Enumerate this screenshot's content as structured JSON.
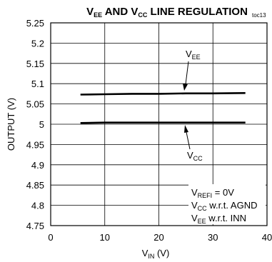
{
  "chart_data": {
    "type": "line",
    "title": {
      "p1": "V",
      "s1": "EE",
      "p2": " AND V",
      "s2": "CC",
      "p3": " LINE REGULATION"
    },
    "tag": "toc13",
    "xlabel": {
      "main": "V",
      "sub": "IN",
      "unit": " (V)"
    },
    "ylabel": "OUTPUT (V)",
    "xlim": [
      0,
      40
    ],
    "ylim": [
      4.75,
      5.25
    ],
    "xticks": [
      0,
      10,
      20,
      30,
      40
    ],
    "xtick_labels": [
      "0",
      "10",
      "20",
      "30",
      "40"
    ],
    "yticks": [
      4.75,
      4.8,
      4.85,
      4.9,
      4.95,
      5,
      5.05,
      5.1,
      5.15,
      5.2,
      5.25
    ],
    "ytick_labels": [
      "4.75",
      "4.8",
      "4.85",
      "4.9",
      "4.95",
      "5",
      "5.05",
      "5.1",
      "5.15",
      "5.2",
      "5.25"
    ],
    "grid": true,
    "series": [
      {
        "name": "VEE",
        "label": {
          "main": "V",
          "sub": "EE"
        },
        "x": [
          5.5,
          10,
          15,
          20,
          25,
          30,
          36
        ],
        "y": [
          5.073,
          5.074,
          5.075,
          5.075,
          5.076,
          5.076,
          5.077
        ]
      },
      {
        "name": "VCC",
        "label": {
          "main": "V",
          "sub": "CC"
        },
        "x": [
          5.5,
          10,
          15,
          20,
          25,
          30,
          36
        ],
        "y": [
          5.003,
          5.004,
          5.004,
          5.004,
          5.004,
          5.004,
          5.004
        ]
      }
    ],
    "conditions": [
      {
        "main": "V",
        "sub": "REFI",
        "rest": " = 0V"
      },
      {
        "main": "V",
        "sub": "CC",
        "rest": " w.r.t. AGND"
      },
      {
        "main": "V",
        "sub": "EE",
        "rest": " w.r.t. INN"
      }
    ]
  }
}
